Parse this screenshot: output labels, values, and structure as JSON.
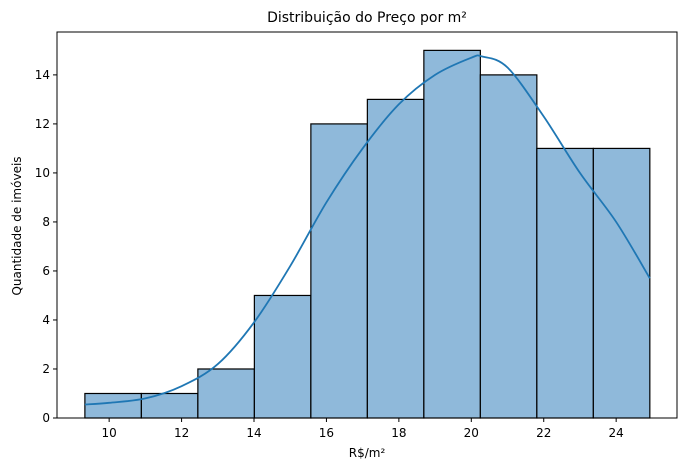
{
  "chart_data": {
    "type": "histogram",
    "title": "Distribuição do Preço por m²",
    "xlabel": "R$/m²",
    "ylabel": "Quantidade de imóveis",
    "xlim": [
      8.56,
      25.68
    ],
    "ylim": [
      0,
      15.75
    ],
    "x_ticks": [
      10,
      12,
      14,
      16,
      18,
      20,
      22,
      24
    ],
    "y_ticks": [
      0,
      2,
      4,
      6,
      8,
      10,
      12,
      14
    ],
    "bins": [
      {
        "start": 9.33,
        "end": 10.89,
        "count": 1
      },
      {
        "start": 10.89,
        "end": 12.45,
        "count": 1
      },
      {
        "start": 12.45,
        "end": 14.01,
        "count": 2
      },
      {
        "start": 14.01,
        "end": 15.57,
        "count": 5
      },
      {
        "start": 15.57,
        "end": 17.13,
        "count": 12
      },
      {
        "start": 17.13,
        "end": 18.69,
        "count": 13
      },
      {
        "start": 18.69,
        "end": 20.25,
        "count": 15
      },
      {
        "start": 20.25,
        "end": 21.81,
        "count": 14
      },
      {
        "start": 21.81,
        "end": 23.37,
        "count": 11
      },
      {
        "start": 23.37,
        "end": 24.93,
        "count": 11
      }
    ],
    "kde": {
      "x": [
        9.33,
        10.0,
        11.0,
        12.0,
        13.0,
        14.0,
        15.0,
        16.0,
        17.0,
        18.0,
        19.0,
        20.0,
        20.3,
        21.0,
        22.0,
        23.0,
        24.0,
        24.93
      ],
      "y": [
        0.55,
        0.62,
        0.8,
        1.3,
        2.2,
        3.9,
        6.2,
        8.8,
        11.0,
        12.8,
        14.0,
        14.7,
        14.75,
        14.3,
        12.3,
        10.0,
        8.0,
        5.7
      ]
    },
    "grid": false,
    "legend": "none",
    "colors": {
      "bar_fill": "#8fb9da",
      "bar_edge": "#000000",
      "kde_line": "#1f77b4"
    }
  }
}
